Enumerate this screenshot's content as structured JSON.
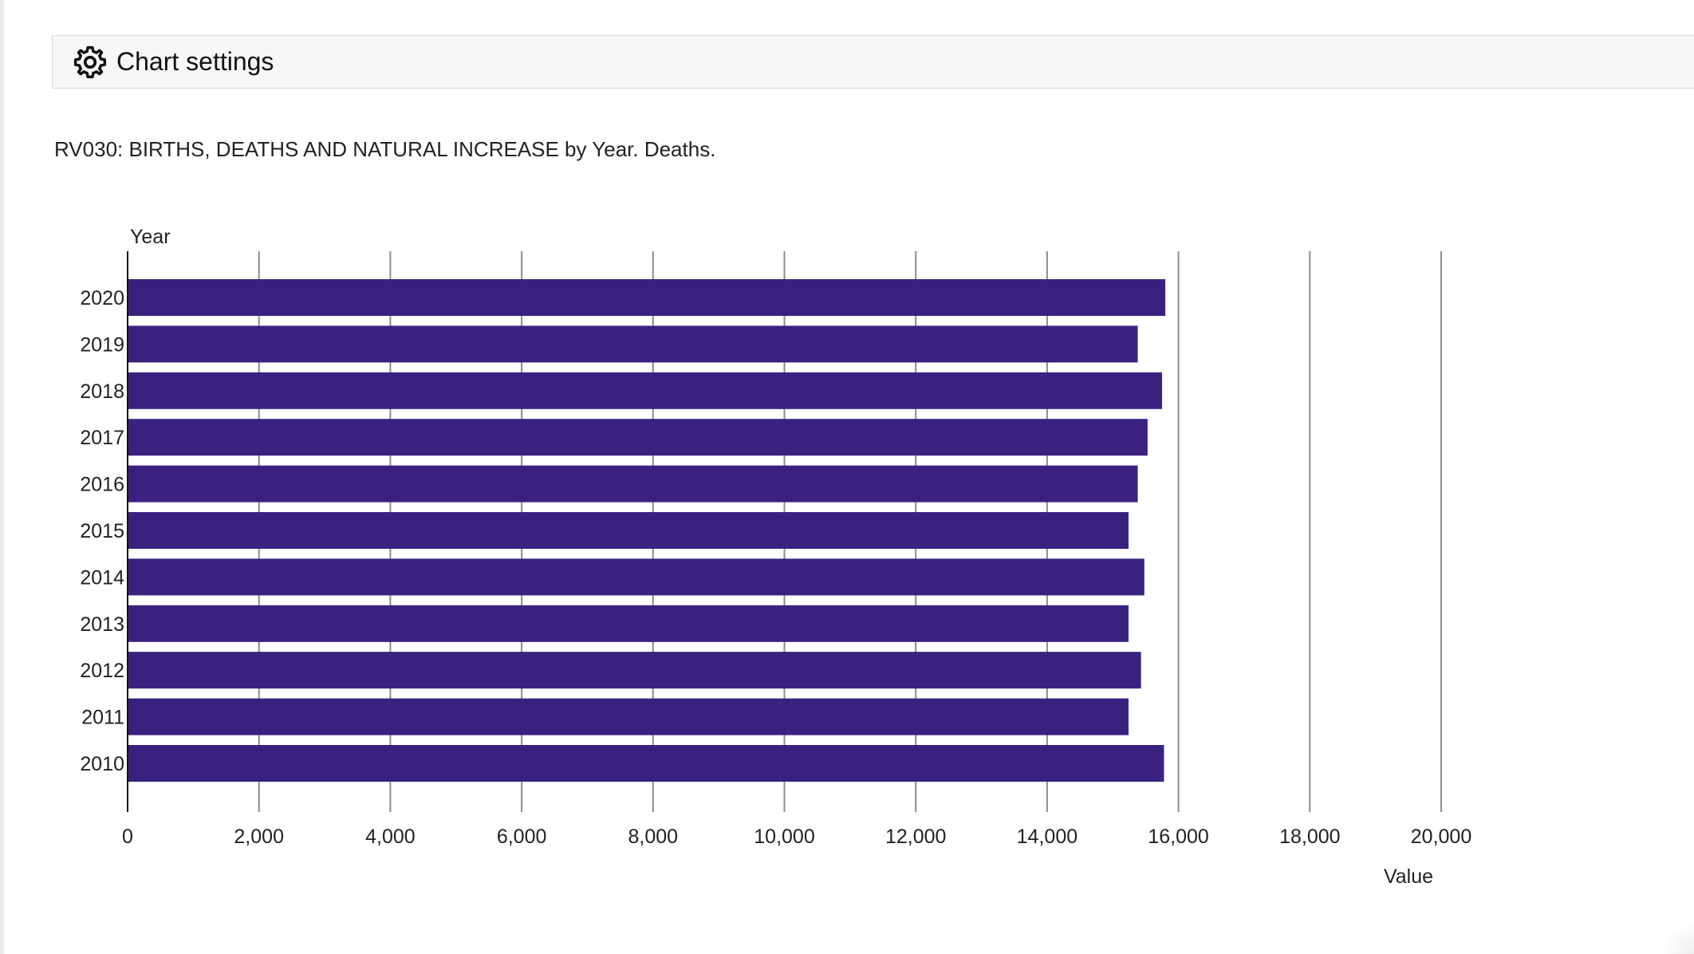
{
  "settings": {
    "label": "Chart settings",
    "icon": "gear-icon"
  },
  "chart_caption": "RV030: BIRTHS, DEATHS AND NATURAL INCREASE by Year. Deaths.",
  "chart_data": {
    "type": "bar",
    "orientation": "horizontal",
    "title": "RV030: BIRTHS, DEATHS AND NATURAL INCREASE by Year. Deaths.",
    "ylabel": "Year",
    "xlabel": "Value",
    "categories": [
      "2020",
      "2019",
      "2018",
      "2017",
      "2016",
      "2015",
      "2014",
      "2013",
      "2012",
      "2011",
      "2010"
    ],
    "values": [
      15800,
      15380,
      15750,
      15530,
      15380,
      15240,
      15480,
      15240,
      15430,
      15240,
      15780
    ],
    "xlim": [
      0,
      20000
    ],
    "ticks": [
      0,
      2000,
      4000,
      6000,
      8000,
      10000,
      12000,
      14000,
      16000,
      18000,
      20000
    ],
    "tick_labels": [
      "0",
      "2,000",
      "4,000",
      "6,000",
      "8,000",
      "10,000",
      "12,000",
      "14,000",
      "16,000",
      "18,000",
      "20,000"
    ],
    "grid": true,
    "legend": "none",
    "bar_color": "#3a2180",
    "grid_color": "#8c8c8c"
  }
}
